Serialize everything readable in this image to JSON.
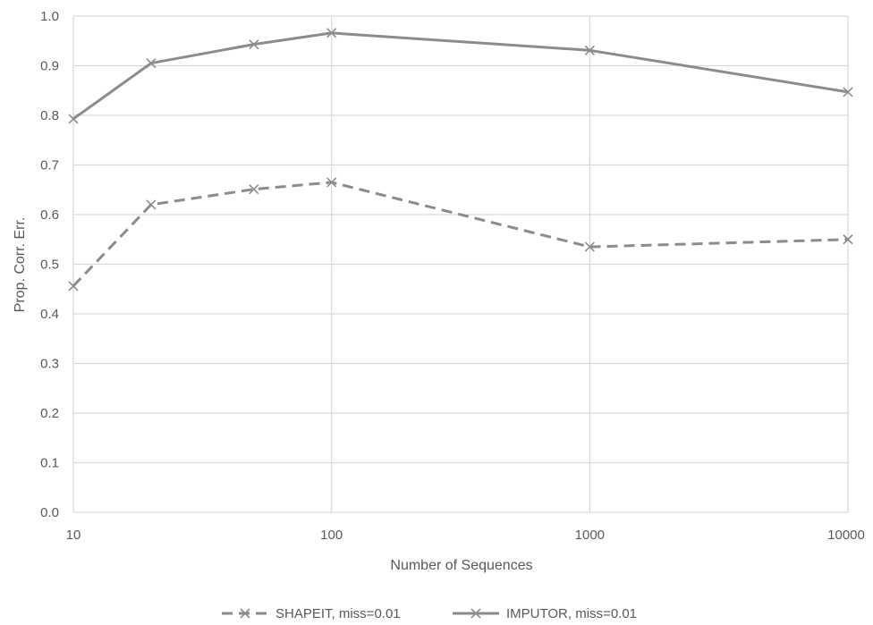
{
  "chart_data": {
    "type": "line",
    "title": "",
    "xlabel": "Number of Sequences",
    "ylabel": "Prop. Corr. Err.",
    "x_scale": "log",
    "xlim": [
      10,
      10000
    ],
    "ylim": [
      0,
      1.0
    ],
    "x_ticks": [
      10,
      100,
      1000,
      10000
    ],
    "x_tick_labels": [
      "10",
      "100",
      "1000",
      "10000"
    ],
    "y_ticks": [
      0,
      0.1,
      0.2,
      0.3,
      0.4,
      0.5,
      0.6,
      0.7,
      0.8,
      0.9,
      1.0
    ],
    "y_tick_labels": [
      "0.0",
      "0.1",
      "0.2",
      "0.3",
      "0.4",
      "0.5",
      "0.6",
      "0.7",
      "0.8",
      "0.9",
      "1.0"
    ],
    "grid": true,
    "legend_position": "bottom",
    "x": [
      10,
      20,
      50,
      100,
      1000,
      10000
    ],
    "series": [
      {
        "name": "SHAPEIT, miss=0.01",
        "values": [
          0.456,
          0.62,
          0.651,
          0.665,
          0.535,
          0.55
        ],
        "style": "dashed",
        "marker": "x",
        "color": "#8c8c8c"
      },
      {
        "name": "IMPUTOR, miss=0.01",
        "values": [
          0.793,
          0.905,
          0.943,
          0.966,
          0.931,
          0.847
        ],
        "style": "solid",
        "marker": "x",
        "color": "#8c8c8c"
      }
    ]
  }
}
